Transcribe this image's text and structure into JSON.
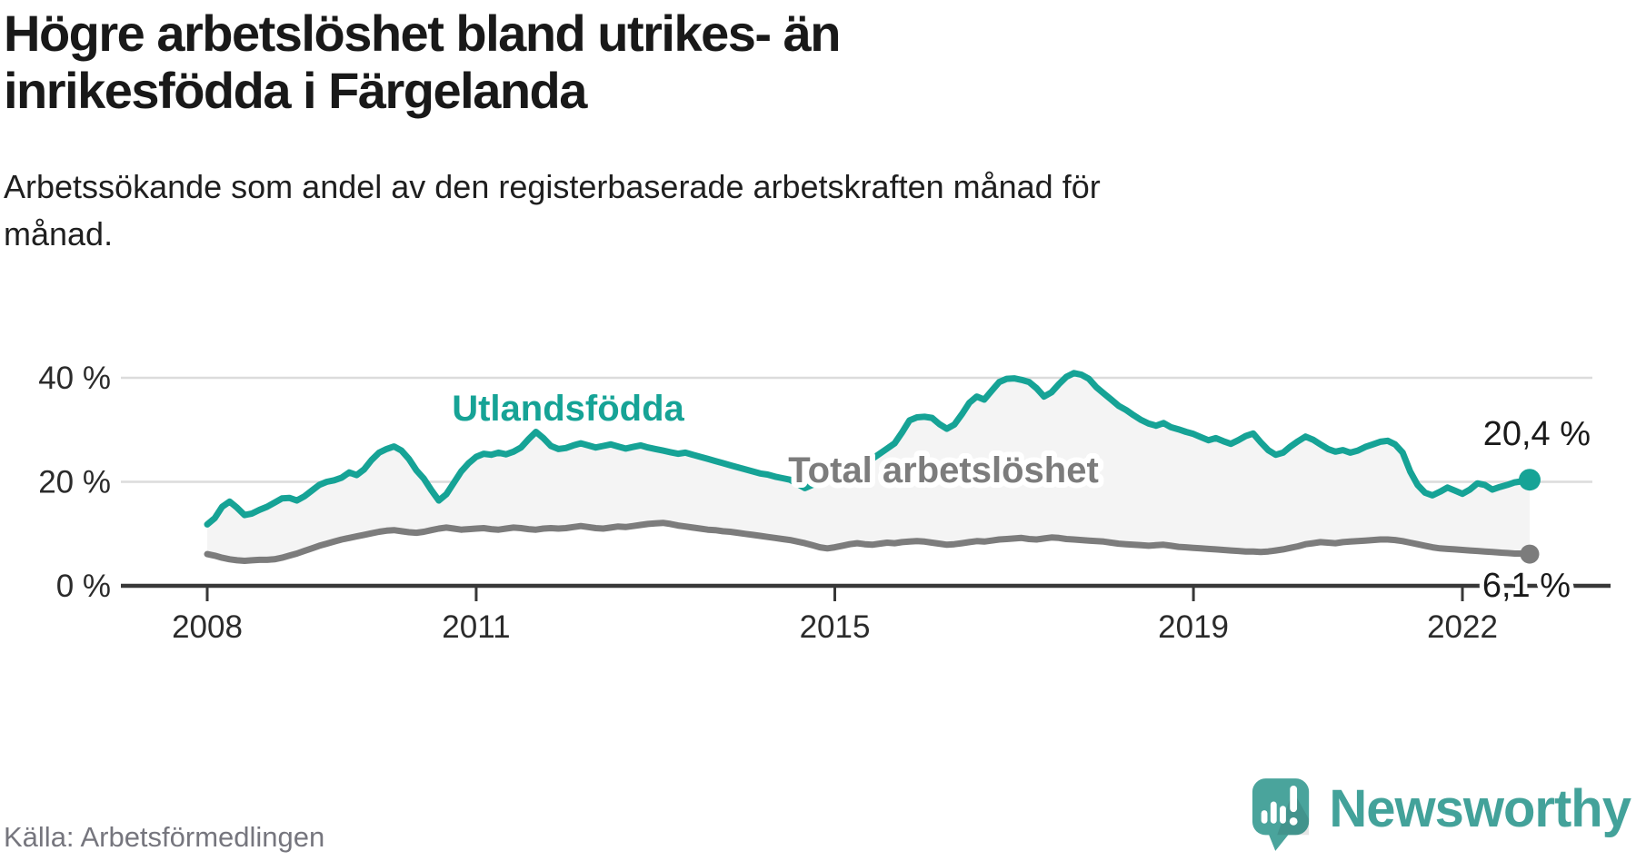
{
  "header": {
    "title": "Högre arbetslöshet bland utrikes- än inrikesfödda i Färgelanda",
    "title_lines": [
      "Högre arbetslöshet bland utrikes- än",
      "inrikesfödda i Färgelanda"
    ],
    "subtitle": "Arbetssökande som andel av den registerbaserade arbetskraften månad för månad.",
    "subtitle_lines": [
      "Arbetssökande som andel av den registerbaserade arbetskraften månad för",
      "månad."
    ]
  },
  "footer": {
    "source": "Källa: Arbetsförmedlingen",
    "logo_text": "Newsworthy"
  },
  "colors": {
    "teal_line": "#16a396",
    "gray_line": "#7c7c7c",
    "area_fill": "#f4f4f4",
    "gridline": "#dcdcdc",
    "axis": "#383838",
    "tick_label": "#2b2b2b",
    "value_label": "#1a1a1a",
    "label_halo": "#ffffff",
    "logo_teal": "#4aa49c",
    "title_text": "#191919",
    "source_text": "#76767e"
  },
  "chart_data": {
    "type": "line",
    "unit": "%",
    "frequency": "monthly",
    "x_start": "2008-01",
    "x_end": "2022-10",
    "x_ticks": [
      "2008",
      "2011",
      "2015",
      "2019",
      "2022"
    ],
    "y_ticks": [
      {
        "value": 0,
        "label": "0 %"
      },
      {
        "value": 20,
        "label": "20 %"
      },
      {
        "value": 40,
        "label": "40 %"
      }
    ],
    "ylim": [
      0,
      44
    ],
    "grid": "horizontal",
    "legend_position": "inline-labels",
    "series": [
      {
        "name": "Utlandsfödda",
        "color": "#16a396",
        "end_value": 20.4,
        "end_label": "20,4 %",
        "values": [
          11.8,
          13.0,
          15.2,
          16.2,
          15.0,
          13.6,
          13.9,
          14.6,
          15.2,
          16.0,
          16.8,
          16.9,
          16.4,
          17.2,
          18.3,
          19.4,
          20.0,
          20.3,
          20.8,
          21.8,
          21.3,
          22.4,
          24.2,
          25.6,
          26.3,
          26.8,
          26.0,
          24.4,
          22.2,
          20.6,
          18.4,
          16.4,
          17.6,
          19.8,
          22.0,
          23.6,
          24.8,
          25.4,
          25.2,
          25.6,
          25.3,
          25.8,
          26.6,
          28.2,
          29.6,
          28.4,
          26.9,
          26.3,
          26.5,
          27.0,
          27.4,
          27.0,
          26.6,
          26.9,
          27.2,
          26.8,
          26.4,
          26.7,
          27.0,
          26.6,
          26.3,
          26.0,
          25.7,
          25.4,
          25.6,
          25.2,
          24.8,
          24.4,
          24.0,
          23.6,
          23.2,
          22.8,
          22.4,
          22.0,
          21.6,
          21.4,
          21.0,
          20.7,
          20.4,
          19.6,
          18.8,
          19.4,
          20.0,
          20.6,
          20.9,
          21.4,
          22.2,
          23.0,
          23.6,
          24.4,
          25.4,
          26.4,
          27.4,
          29.5,
          31.8,
          32.4,
          32.5,
          32.3,
          31.1,
          30.2,
          31.0,
          33.0,
          35.2,
          36.4,
          35.8,
          37.5,
          39.2,
          39.8,
          39.9,
          39.6,
          39.2,
          38.0,
          36.4,
          37.2,
          38.8,
          40.2,
          40.9,
          40.6,
          39.8,
          38.2,
          37.0,
          35.8,
          34.6,
          33.8,
          32.8,
          31.9,
          31.2,
          30.8,
          31.3,
          30.5,
          30.1,
          29.6,
          29.2,
          28.6,
          28.0,
          28.4,
          27.8,
          27.3,
          28.0,
          28.8,
          29.3,
          27.6,
          26.1,
          25.2,
          25.6,
          26.8,
          27.8,
          28.7,
          28.1,
          27.2,
          26.3,
          25.8,
          26.1,
          25.6,
          26.0,
          26.7,
          27.2,
          27.7,
          27.9,
          27.2,
          25.6,
          22.0,
          19.4,
          17.9,
          17.4,
          18.1,
          18.9,
          18.3,
          17.7,
          18.5,
          19.7,
          19.4,
          18.5,
          19.0,
          19.4,
          19.9,
          20.1,
          20.4
        ]
      },
      {
        "name": "Total arbetslöshet",
        "color": "#7c7c7c",
        "end_value": 6.1,
        "end_label": "6,1 %",
        "values": [
          6.1,
          5.8,
          5.4,
          5.1,
          4.9,
          4.8,
          4.9,
          5.0,
          5.0,
          5.1,
          5.4,
          5.8,
          6.2,
          6.7,
          7.2,
          7.7,
          8.1,
          8.5,
          8.9,
          9.2,
          9.5,
          9.8,
          10.1,
          10.4,
          10.6,
          10.7,
          10.5,
          10.3,
          10.2,
          10.4,
          10.7,
          11.0,
          11.2,
          11.0,
          10.8,
          10.9,
          11.0,
          11.1,
          10.9,
          10.8,
          11.0,
          11.2,
          11.1,
          10.9,
          10.8,
          11.0,
          11.1,
          11.0,
          11.1,
          11.3,
          11.5,
          11.3,
          11.1,
          11.0,
          11.2,
          11.4,
          11.3,
          11.5,
          11.7,
          11.9,
          12.0,
          12.1,
          11.9,
          11.6,
          11.4,
          11.2,
          11.0,
          10.8,
          10.7,
          10.5,
          10.4,
          10.2,
          10.0,
          9.8,
          9.6,
          9.4,
          9.2,
          9.0,
          8.8,
          8.5,
          8.2,
          7.8,
          7.4,
          7.2,
          7.4,
          7.7,
          8.0,
          8.2,
          8.0,
          7.9,
          8.1,
          8.3,
          8.2,
          8.4,
          8.5,
          8.6,
          8.5,
          8.3,
          8.1,
          7.9,
          8.0,
          8.2,
          8.4,
          8.6,
          8.5,
          8.7,
          8.9,
          9.0,
          9.1,
          9.2,
          9.0,
          8.9,
          9.1,
          9.3,
          9.2,
          9.0,
          8.9,
          8.8,
          8.7,
          8.6,
          8.5,
          8.3,
          8.1,
          8.0,
          7.9,
          7.8,
          7.7,
          7.8,
          7.9,
          7.7,
          7.5,
          7.4,
          7.3,
          7.2,
          7.1,
          7.0,
          6.9,
          6.8,
          6.7,
          6.6,
          6.6,
          6.5,
          6.6,
          6.8,
          7.0,
          7.3,
          7.6,
          8.0,
          8.2,
          8.4,
          8.3,
          8.2,
          8.4,
          8.5,
          8.6,
          8.7,
          8.8,
          8.9,
          8.9,
          8.8,
          8.6,
          8.3,
          8.0,
          7.7,
          7.4,
          7.2,
          7.1,
          7.0,
          6.9,
          6.8,
          6.7,
          6.6,
          6.5,
          6.4,
          6.3,
          6.2,
          6.2,
          6.1
        ]
      }
    ]
  }
}
